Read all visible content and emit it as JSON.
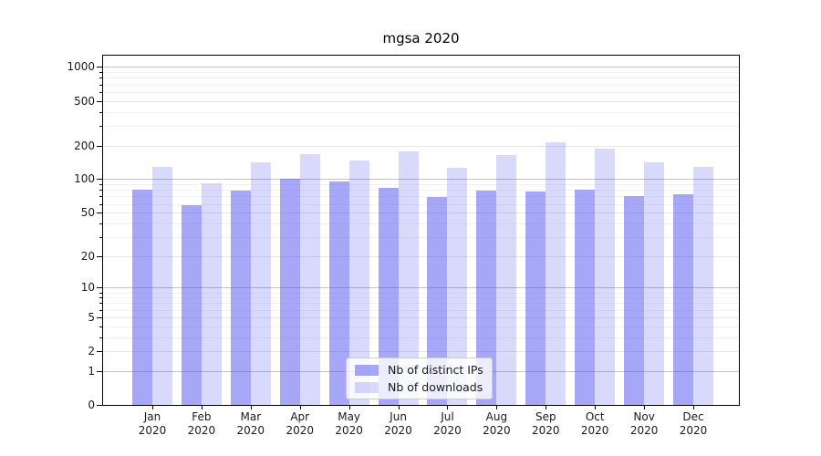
{
  "chart_data": {
    "type": "bar",
    "title": "mgsa 2020",
    "categories": [
      "Jan 2020",
      "Feb 2020",
      "Mar 2020",
      "Apr 2020",
      "May 2020",
      "Jun 2020",
      "Jul 2020",
      "Aug 2020",
      "Sep 2020",
      "Oct 2020",
      "Nov 2020",
      "Dec 2020"
    ],
    "series": [
      {
        "name": "Nb of distinct IPs",
        "color": "rgba(80,80,240,0.50)",
        "values": [
          80,
          58,
          79,
          101,
          95,
          84,
          69,
          79,
          78,
          80,
          71,
          73
        ]
      },
      {
        "name": "Nb of downloads",
        "color": "rgba(80,80,240,0.22)",
        "values": [
          129,
          92,
          142,
          168,
          147,
          177,
          126,
          164,
          214,
          188,
          142,
          129
        ]
      }
    ],
    "y_axis": {
      "scale": "log1p",
      "labeled_ticks": [
        0,
        1,
        2,
        5,
        10,
        20,
        50,
        100,
        200,
        500,
        1000
      ],
      "power_ticks": [
        1,
        10,
        100,
        1000
      ],
      "minor_ticks": [
        3,
        4,
        6,
        7,
        8,
        9,
        30,
        40,
        60,
        70,
        80,
        90,
        300,
        400,
        600,
        700,
        800,
        900
      ],
      "ylim": [
        0,
        1260
      ]
    },
    "legend": {
      "position": "lower center"
    },
    "colors": {
      "grid_major": "#c2c2c2",
      "grid_labeled": "#e6e6e6",
      "grid_minor": "#f2f2f2",
      "spine": "#000000",
      "text": "#1a1a1a"
    },
    "xlabel": "",
    "ylabel": ""
  }
}
